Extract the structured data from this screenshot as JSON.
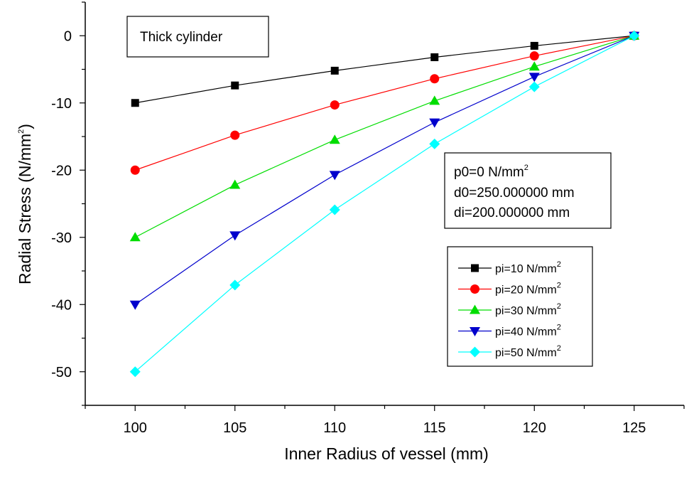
{
  "chart_data": {
    "type": "line",
    "title": "",
    "xlabel": "Inner Radius of vessel (mm)",
    "ylabel": "Radial Stress (N/mm",
    "ylabel_sup": "2",
    "ylabel_close": ")",
    "xlim": [
      97.5,
      127.5
    ],
    "ylim": [
      -55,
      5
    ],
    "x_ticks": [
      100,
      105,
      110,
      115,
      120,
      125
    ],
    "y_ticks": [
      0,
      -10,
      -20,
      -30,
      -40,
      -50
    ],
    "x": [
      100,
      105,
      110,
      115,
      120,
      125
    ],
    "series": [
      {
        "name": "pi=10 N/mm",
        "name_sup": "2",
        "color": "#000000",
        "marker": "square",
        "values": [
          -10,
          -7.4,
          -5.2,
          -3.2,
          -1.5,
          0
        ]
      },
      {
        "name": "pi=20 N/mm",
        "name_sup": "2",
        "color": "#ff0000",
        "marker": "circle",
        "values": [
          -20,
          -14.8,
          -10.3,
          -6.4,
          -3.0,
          0
        ]
      },
      {
        "name": "pi=30 N/mm",
        "name_sup": "2",
        "color": "#00dd00",
        "marker": "triangle-up",
        "values": [
          -30,
          -22.2,
          -15.5,
          -9.7,
          -4.6,
          0
        ]
      },
      {
        "name": "pi=40 N/mm",
        "name_sup": "2",
        "color": "#0000cc",
        "marker": "triangle-down",
        "values": [
          -40,
          -29.7,
          -20.7,
          -12.9,
          -6.1,
          0
        ]
      },
      {
        "name": "pi=50 N/mm",
        "name_sup": "2",
        "color": "#00ffff",
        "marker": "diamond",
        "values": [
          -50,
          -37.1,
          -25.9,
          -16.1,
          -7.6,
          0
        ]
      }
    ],
    "annotations": {
      "label_box": "Thick cylinder",
      "params": [
        {
          "text": "p0=0 N/mm",
          "sup": "2"
        },
        {
          "text": "d0=250.000000 mm",
          "sup": ""
        },
        {
          "text": "di=200.000000 mm",
          "sup": ""
        }
      ]
    },
    "legend_position": "right"
  }
}
